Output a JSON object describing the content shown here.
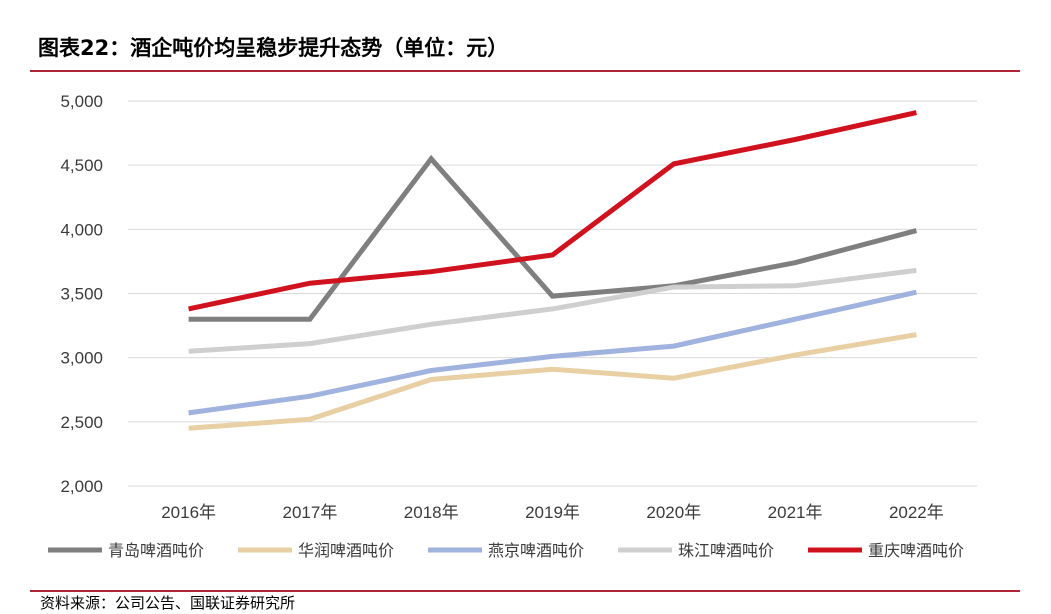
{
  "header": {
    "title": "图表22：酒企吨价均呈稳步提升态势（单位：元）"
  },
  "footer": {
    "source": "资料来源：公司公告、国联证券研究所"
  },
  "colors": {
    "rule": "#b0243a",
    "grid": "#d9d9d9"
  },
  "chart_data": {
    "type": "line",
    "categories": [
      "2016年",
      "2017年",
      "2018年",
      "2019年",
      "2020年",
      "2021年",
      "2022年"
    ],
    "ylim": [
      2000,
      5000
    ],
    "yticks": [
      2000,
      2500,
      3000,
      3500,
      4000,
      4500,
      5000
    ],
    "ytick_labels": [
      "2,000",
      "2,500",
      "3,000",
      "3,500",
      "4,000",
      "4,500",
      "5,000"
    ],
    "grid": true,
    "legend_position": "bottom",
    "series": [
      {
        "name": "青岛啤酒吨价",
        "color": "#7f7f7f",
        "values": [
          3300,
          3300,
          4550,
          3480,
          3560,
          3740,
          3990
        ]
      },
      {
        "name": "华润啤酒吨价",
        "color": "#e8cfa4",
        "values": [
          2450,
          2520,
          2830,
          2910,
          2840,
          3020,
          3180
        ]
      },
      {
        "name": "燕京啤酒吨价",
        "color": "#9fb3de",
        "values": [
          2570,
          2700,
          2900,
          3010,
          3090,
          3300,
          3510
        ]
      },
      {
        "name": "珠江啤酒吨价",
        "color": "#cfcfcf",
        "values": [
          3050,
          3110,
          3260,
          3380,
          3550,
          3560,
          3680
        ]
      },
      {
        "name": "重庆啤酒吨价",
        "color": "#d0121f",
        "values": [
          3380,
          3580,
          3670,
          3800,
          4510,
          4700,
          4910
        ]
      }
    ]
  }
}
